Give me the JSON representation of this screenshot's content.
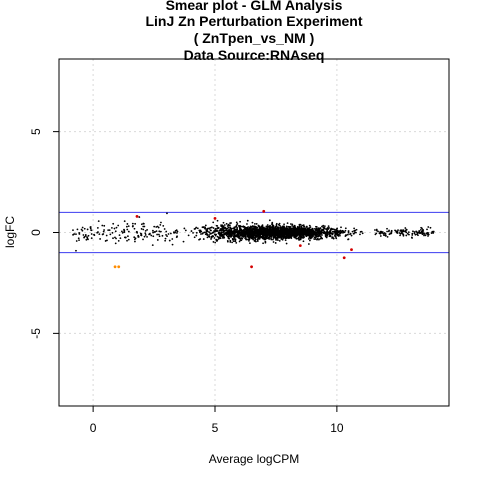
{
  "chart_data": {
    "type": "scatter",
    "title_lines": [
      "Smear plot - GLM Analysis",
      "LinJ Zn Perturbation Experiment",
      "( ZnTpen_vs_NM )",
      "Data Source:RNAseq"
    ],
    "xlabel": "Average logCPM",
    "ylabel": "logFC",
    "xlim": [
      -1.4,
      14.6
    ],
    "ylim": [
      -8.6,
      8.6
    ],
    "x_ticks": [
      0,
      5,
      10
    ],
    "y_ticks": [
      -5,
      0,
      5
    ],
    "grid": true,
    "threshold_lines": [
      1,
      -1
    ],
    "colors": {
      "points": "#000000",
      "de_up": "#d40000",
      "de_down": "#d40000",
      "low_expr_de": "#ff8c00",
      "threshold": "#3b3bf0",
      "grid": "#d9d9d9"
    },
    "highlighted_points": [
      {
        "x": 0.9,
        "y": -1.7,
        "color": "#ff8c00"
      },
      {
        "x": 1.05,
        "y": -1.7,
        "color": "#ff8c00"
      },
      {
        "x": 1.8,
        "y": 0.8,
        "color": "#d40000"
      },
      {
        "x": 5.0,
        "y": 0.7,
        "color": "#d40000"
      },
      {
        "x": 6.5,
        "y": -1.7,
        "color": "#d40000"
      },
      {
        "x": 7.0,
        "y": 1.05,
        "color": "#d40000"
      },
      {
        "x": 8.5,
        "y": -0.65,
        "color": "#d40000"
      },
      {
        "x": 10.3,
        "y": -1.25,
        "color": "#d40000"
      },
      {
        "x": 10.6,
        "y": -0.85,
        "color": "#d40000"
      }
    ],
    "background_cloud": {
      "x_range": [
        -0.9,
        14.0
      ],
      "dense_range": [
        3.5,
        11.5
      ],
      "spread_low_expr": 0.55,
      "spread_high_expr": 0.18,
      "n_points": 2600
    }
  }
}
